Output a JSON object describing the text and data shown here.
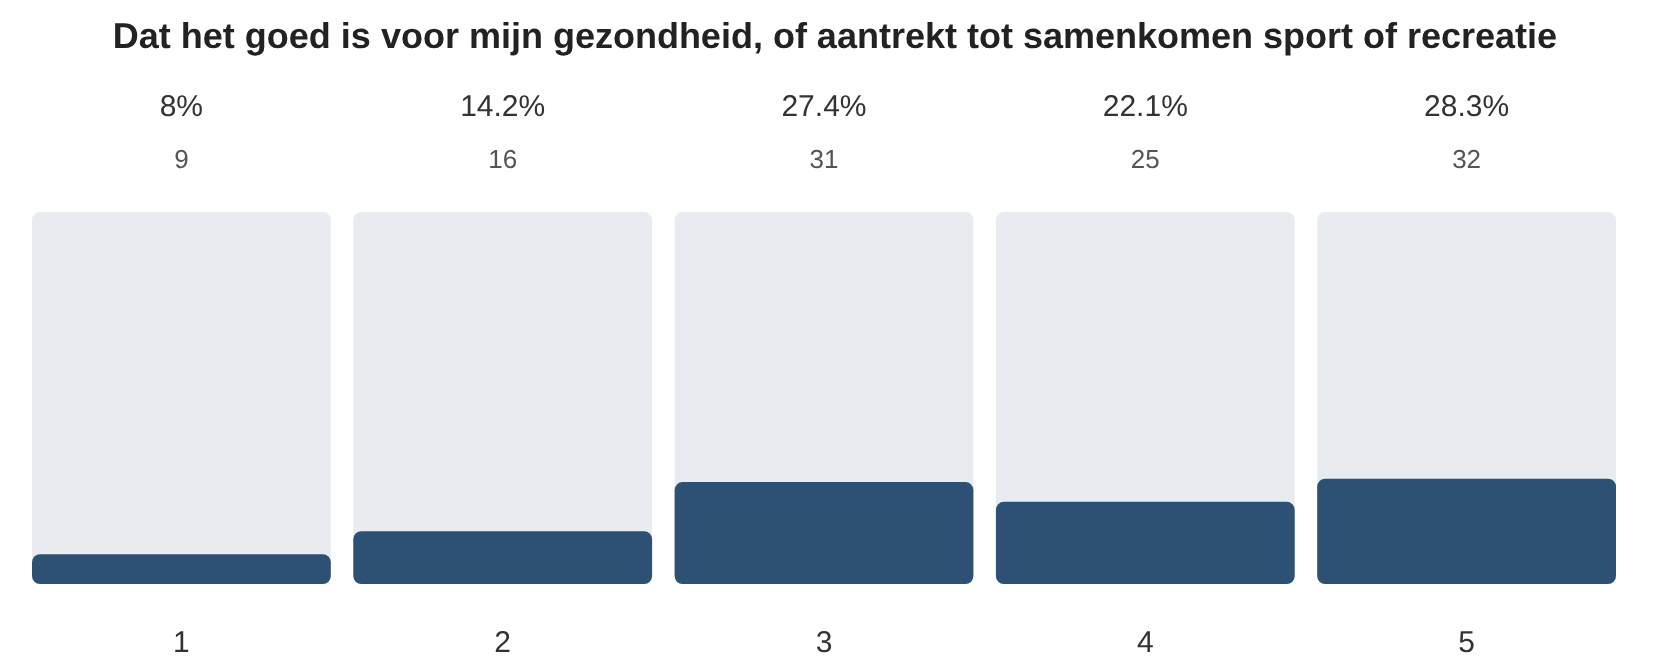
{
  "chart_data": {
    "type": "bar",
    "title": "Dat het goed is voor mijn gezondheid, of aantrekt tot samenkomen sport of recreatie",
    "categories": [
      "1",
      "2",
      "3",
      "4",
      "5"
    ],
    "values": [
      8,
      14.2,
      27.4,
      22.1,
      28.3
    ],
    "value_labels": [
      "8%",
      "14.2%",
      "27.4%",
      "22.1%",
      "28.3%"
    ],
    "color": "#2c5175",
    "ylim": [
      0,
      100
    ],
    "annotations": [
      "9",
      "16",
      "31",
      "25",
      "32"
    ]
  }
}
